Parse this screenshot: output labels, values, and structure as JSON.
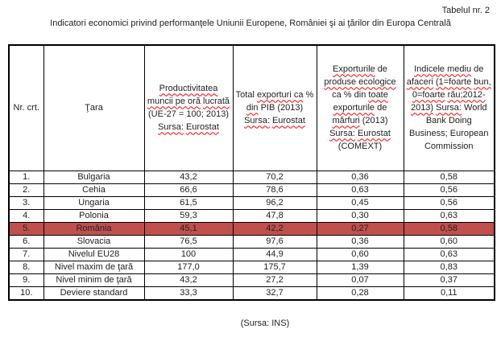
{
  "document": {
    "table_number": "Tabelul nr. 2",
    "title": "Indicatori economici privind performanţele Uniunii Europene, României şi ai ţărilor din Europa Centrală",
    "footer": "(Sursa: INS)"
  },
  "colors": {
    "highlight_row": "#C0504D",
    "spellcheck_underline": "#FF0000",
    "border": "#000000",
    "text": "#222222",
    "background": "#FFFFFF"
  },
  "table": {
    "headers": [
      {
        "id": "nr-crt",
        "segments": [
          {
            "t": "Nr. crt.",
            "u": false
          }
        ]
      },
      {
        "id": "tara",
        "segments": [
          {
            "t": "Ţara",
            "u": false
          }
        ]
      },
      {
        "id": "productivitate",
        "segments": [
          {
            "t": "Productivitatea",
            "u": true
          },
          {
            "t": "muncii pe oră",
            "u": true
          },
          {
            "t": "lucrată",
            "u": true
          },
          {
            "t": "(UE-27 = 100; 2013)",
            "u": false
          },
          {
            "t": "Sursa:",
            "u": true
          },
          {
            "t": "Eurostat",
            "u": true
          }
        ]
      },
      {
        "id": "total-exporturi",
        "segments": [
          {
            "t": "Total",
            "u": false
          },
          {
            "t": "exporturi ca",
            "u": true
          },
          {
            "t": "%",
            "u": false
          },
          {
            "t": "din",
            "u": true
          },
          {
            "t": "PIB (2013)",
            "u": false
          },
          {
            "t": "Sursa:",
            "u": true
          },
          {
            "t": "Eurostat",
            "u": true
          }
        ]
      },
      {
        "id": "exporturi-ecologice",
        "segments": [
          {
            "t": "Exporturile",
            "u": true
          },
          {
            "t": "de",
            "u": false
          },
          {
            "t": "produse ecologice",
            "u": true
          },
          {
            "t": "ca % din",
            "u": false
          },
          {
            "t": "toate",
            "u": true
          },
          {
            "t": "exporturile",
            "u": true
          },
          {
            "t": "de",
            "u": false
          },
          {
            "t": "mărfuri",
            "u": true
          },
          {
            "t": "(2013)",
            "u": false
          },
          {
            "t": "Sursa:",
            "u": true
          },
          {
            "t": "Eurostat",
            "u": true
          },
          {
            "t": "(COMEXT)",
            "u": false
          }
        ]
      },
      {
        "id": "indice-afaceri",
        "segments": [
          {
            "t": "Indicele mediu",
            "u": true
          },
          {
            "t": "de",
            "u": false
          },
          {
            "t": "afaceri",
            "u": true
          },
          {
            "t": "(1=foarte",
            "u": true
          },
          {
            "t": "bun,",
            "u": true
          },
          {
            "t": "0=foarte",
            "u": true
          },
          {
            "t": "rău;2012-2013)",
            "u": true
          },
          {
            "t": "Sursa:",
            "u": true
          },
          {
            "t": "World Bank Doing Business; European Commission",
            "u": false
          }
        ]
      }
    ],
    "rows": [
      {
        "nr": "1.",
        "tara": "Bulgaria",
        "values": [
          "43,2",
          "70,2",
          "0,36",
          "0,58"
        ],
        "highlight": false
      },
      {
        "nr": "2.",
        "tara": "Cehia",
        "values": [
          "66,6",
          "78,6",
          "0,63",
          "0,56"
        ],
        "highlight": false
      },
      {
        "nr": "3.",
        "tara": "Ungaria",
        "values": [
          "61,5",
          "96,2",
          "0,45",
          "0,56"
        ],
        "highlight": false
      },
      {
        "nr": "4.",
        "tara": "Polonia",
        "values": [
          "59,3",
          "47,8",
          "0,30",
          "0,63"
        ],
        "highlight": false
      },
      {
        "nr": "5.",
        "tara": "România",
        "values": [
          "45,1",
          "42,2",
          "0,27",
          "0,58"
        ],
        "highlight": true
      },
      {
        "nr": "6.",
        "tara": "Slovacia",
        "values": [
          "76,5",
          "97,6",
          "0,36",
          "0,60"
        ],
        "highlight": false
      },
      {
        "nr": "7.",
        "tara": "Nivelul EU28",
        "values": [
          "100",
          "44,9",
          "0,60",
          "0,63"
        ],
        "highlight": false
      },
      {
        "nr": "8.",
        "tara": "Nivel maxim de ţară",
        "values": [
          "177,0",
          "175,7",
          "1,39",
          "0,83"
        ],
        "highlight": false
      },
      {
        "nr": "9.",
        "tara": "Nivel minim de ţară",
        "values": [
          "43,2",
          "27,2",
          "0,07",
          "0,37"
        ],
        "highlight": false
      },
      {
        "nr": "10.",
        "tara": "Deviere standard",
        "values": [
          "33,3",
          "32,7",
          "0,28",
          "0,11"
        ],
        "highlight": false
      }
    ]
  }
}
